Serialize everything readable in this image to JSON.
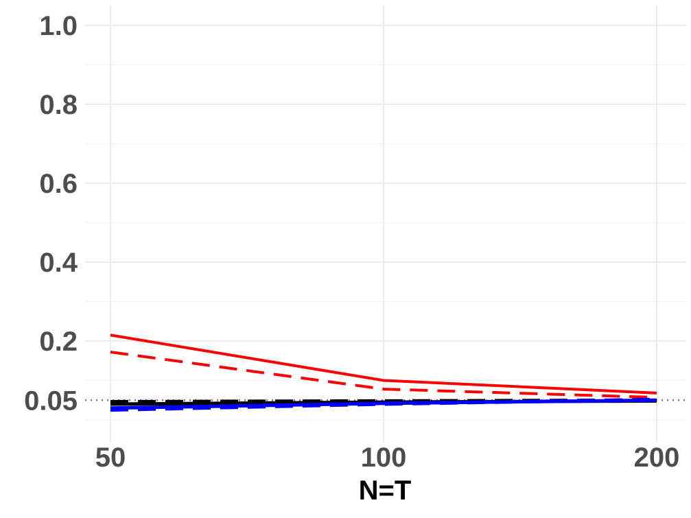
{
  "chart_data": {
    "type": "line",
    "xlabel": "N=T",
    "ylabel": "",
    "x": [
      50,
      100,
      200
    ],
    "x_tick_labels": [
      "50",
      "100",
      "200"
    ],
    "y_ticks": [
      0.05,
      0.2,
      0.4,
      0.6,
      0.8,
      1.0
    ],
    "y_tick_labels": [
      "0.05",
      "0.2",
      "0.4",
      "0.6",
      "0.8",
      "1.0"
    ],
    "ylim": [
      -0.02,
      1.05
    ],
    "reference_line": {
      "y": 0.05,
      "style": "dotted",
      "color": "#777777"
    },
    "grid": true,
    "series": [
      {
        "values": [
          0.215,
          0.1,
          0.068
        ],
        "color": "#ff0000",
        "dash": "solid"
      },
      {
        "values": [
          0.172,
          0.078,
          0.057
        ],
        "color": "#ff0000",
        "dash": "dashed"
      },
      {
        "values": [
          0.04,
          0.045,
          0.048
        ],
        "color": "#000000",
        "dash": "solid"
      },
      {
        "values": [
          0.046,
          0.048,
          0.05
        ],
        "color": "#000000",
        "dash": "dashed"
      },
      {
        "values": [
          0.03,
          0.042,
          0.05
        ],
        "color": "#0000ff",
        "dash": "solid"
      },
      {
        "values": [
          0.025,
          0.04,
          0.052
        ],
        "color": "#0000ff",
        "dash": "dashed"
      }
    ]
  }
}
